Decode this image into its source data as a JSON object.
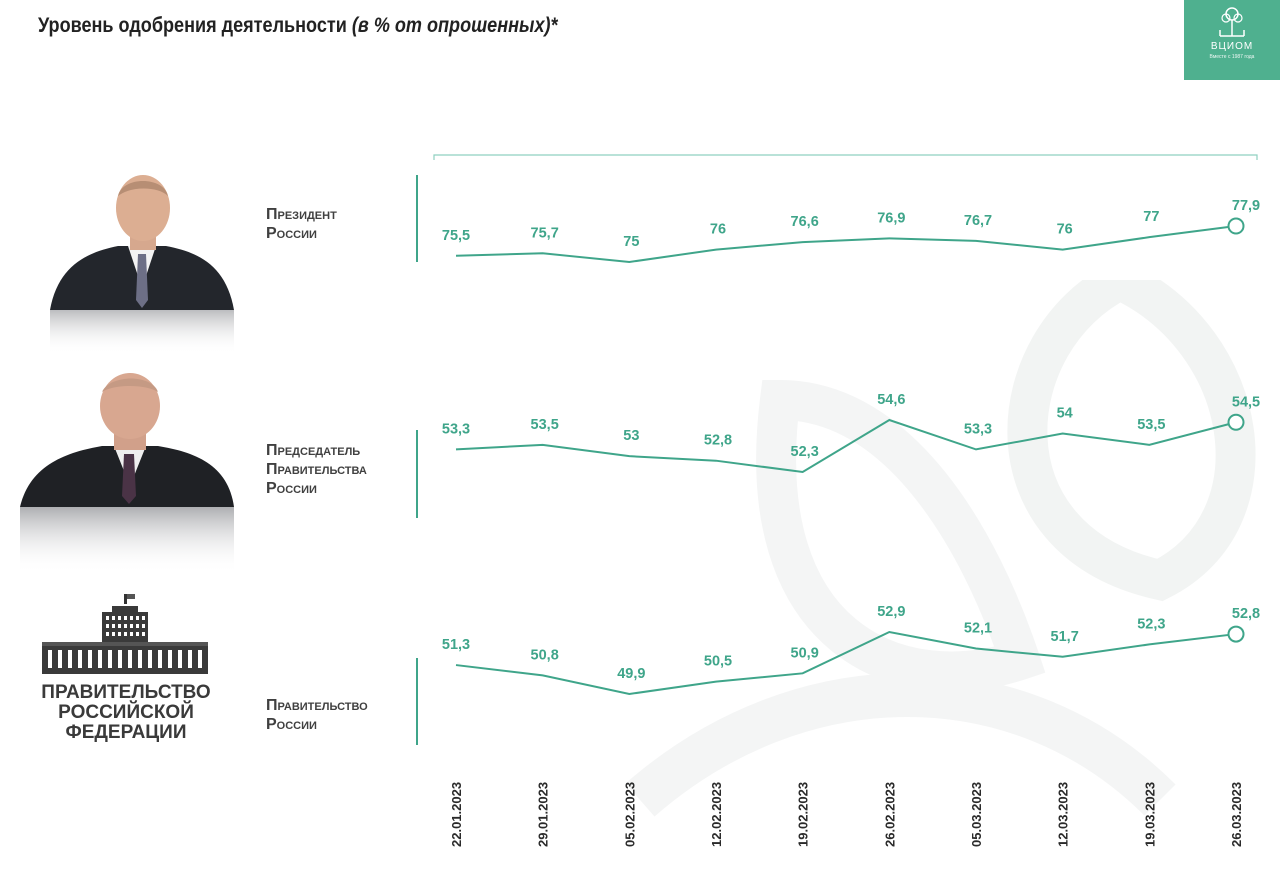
{
  "title": {
    "main": "Уровень одобрения деятельности",
    "note": "(в % от опрошенных)*"
  },
  "logo": {
    "name": "ВЦИОМ",
    "tagline": "Вместе с 1987 года"
  },
  "government_emblem_text": "ПРАВИТЕЛЬСТВО\nРОССИЙСКОЙ\nФЕДЕРАЦИИ",
  "colors": {
    "series": "#3fa58a",
    "logo_bg": "#4fb08f"
  },
  "chart_data": {
    "type": "line",
    "title": "Уровень одобрения деятельности (в % от опрошенных)*",
    "x": [
      "22.01.2023",
      "29.01.2023",
      "05.02.2023",
      "12.02.2023",
      "19.02.2023",
      "26.02.2023",
      "05.03.2023",
      "12.03.2023",
      "19.03.2023",
      "26.03.2023"
    ],
    "series": [
      {
        "name": "Президент России",
        "label": "Президент\nРоссии",
        "values": [
          75.5,
          75.7,
          75,
          76,
          76.6,
          76.9,
          76.7,
          76,
          77,
          77.9
        ],
        "value_labels": [
          "75,5",
          "75,7",
          "75",
          "76",
          "76,6",
          "76,9",
          "76,7",
          "76",
          "77",
          "77,9"
        ]
      },
      {
        "name": "Председатель Правительства России",
        "label": "Председатель\nПравительства\nРоссии",
        "values": [
          53.3,
          53.5,
          53,
          52.8,
          52.3,
          54.6,
          53.3,
          54,
          53.5,
          54.5
        ],
        "value_labels": [
          "53,3",
          "53,5",
          "53",
          "52,8",
          "52,3",
          "54,6",
          "53,3",
          "54",
          "53,5",
          "54,5"
        ]
      },
      {
        "name": "Правительство России",
        "label": "Правительство\nРоссии",
        "values": [
          51.3,
          50.8,
          49.9,
          50.5,
          50.9,
          52.9,
          52.1,
          51.7,
          52.3,
          52.8
        ],
        "value_labels": [
          "51,3",
          "50,8",
          "49,9",
          "50,5",
          "50,9",
          "52,9",
          "52,1",
          "51,7",
          "52,3",
          "52,8"
        ]
      }
    ]
  }
}
